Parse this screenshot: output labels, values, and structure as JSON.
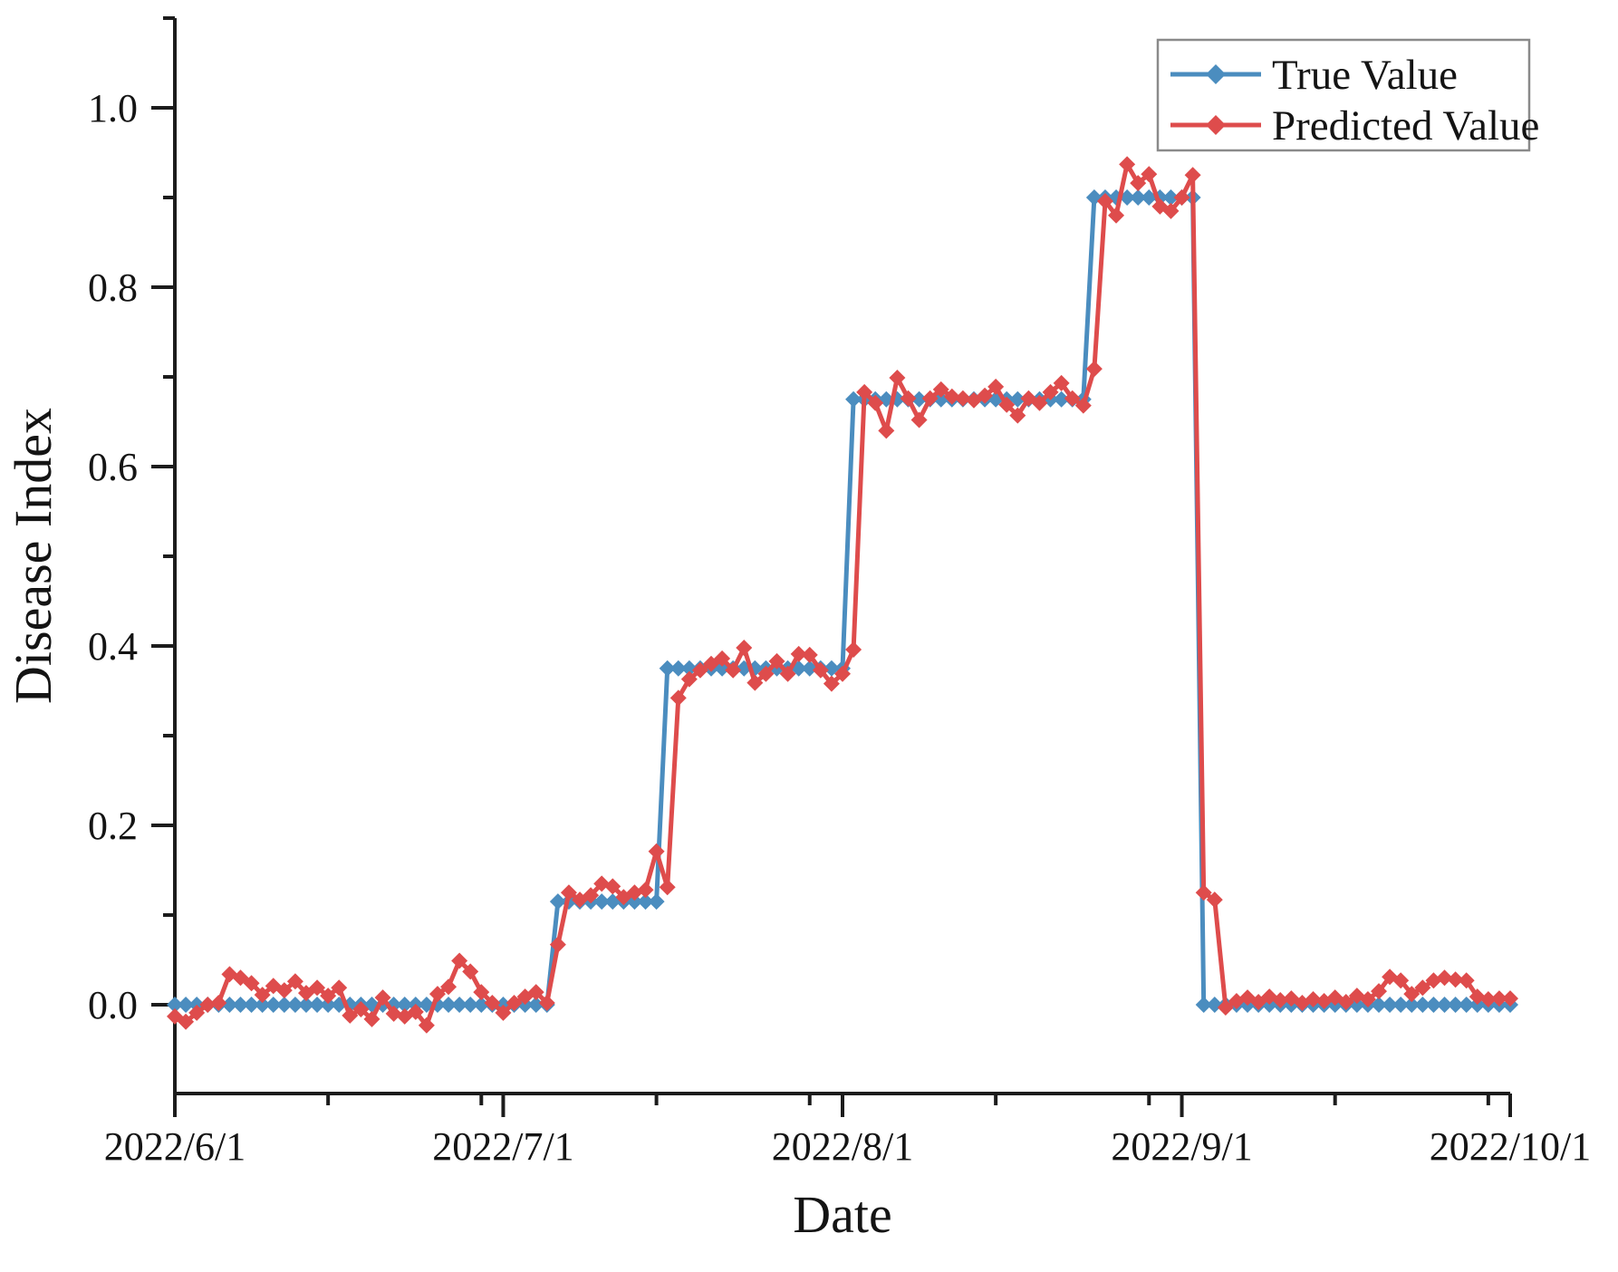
{
  "figure": {
    "background": "#ffffff",
    "axis_color": "#1c1c1c",
    "text_color": "#141414",
    "legend_border_color": "#8a8a8a"
  },
  "legend": {
    "position": "top-right",
    "items": [
      {
        "label": "True Value",
        "color": "#4b8dbf"
      },
      {
        "label": "Predicted Value",
        "color": "#de4c4c"
      }
    ]
  },
  "chart_data": {
    "type": "line",
    "title": "",
    "xlabel": "Date",
    "ylabel": "Disease Index",
    "grid": false,
    "legend_position": "top-right inside",
    "ylim": [
      -0.1,
      1.1
    ],
    "x_axis": {
      "start_label": "2022/6/1",
      "end_label": "2022/10/1",
      "sampling": "daily",
      "range_days": [
        0,
        122
      ],
      "major_ticks": [
        {
          "day": 0,
          "label": "2022/6/1"
        },
        {
          "day": 30,
          "label": "2022/7/1"
        },
        {
          "day": 61,
          "label": "2022/8/1"
        },
        {
          "day": 92,
          "label": "2022/9/1"
        },
        {
          "day": 122,
          "label": "2022/10/1"
        }
      ],
      "minor_tick_days": [
        14,
        28,
        44,
        58,
        75,
        89,
        106,
        120
      ]
    },
    "y_axis": {
      "major_ticks": [
        {
          "value": 0.0,
          "label": "0.0"
        },
        {
          "value": 0.2,
          "label": "0.2"
        },
        {
          "value": 0.4,
          "label": "0.4"
        },
        {
          "value": 0.6,
          "label": "0.6"
        },
        {
          "value": 0.8,
          "label": "0.8"
        },
        {
          "value": 1.0,
          "label": "1.0"
        }
      ],
      "minor_tick_values": [
        0.1,
        0.3,
        0.5,
        0.7,
        0.9,
        1.1
      ]
    },
    "x": [
      0,
      1,
      2,
      3,
      4,
      5,
      6,
      7,
      8,
      9,
      10,
      11,
      12,
      13,
      14,
      15,
      16,
      17,
      18,
      19,
      20,
      21,
      22,
      23,
      24,
      25,
      26,
      27,
      28,
      29,
      30,
      31,
      32,
      33,
      34,
      35,
      36,
      37,
      38,
      39,
      40,
      41,
      42,
      43,
      44,
      45,
      46,
      47,
      48,
      49,
      50,
      51,
      52,
      53,
      54,
      55,
      56,
      57,
      58,
      59,
      60,
      61,
      62,
      63,
      64,
      65,
      66,
      67,
      68,
      69,
      70,
      71,
      72,
      73,
      74,
      75,
      76,
      77,
      78,
      79,
      80,
      81,
      82,
      83,
      84,
      85,
      86,
      87,
      88,
      89,
      90,
      91,
      92,
      93,
      94,
      95,
      96,
      97,
      98,
      99,
      100,
      101,
      102,
      103,
      104,
      105,
      106,
      107,
      108,
      109,
      110,
      111,
      112,
      113,
      114,
      115,
      116,
      117,
      118,
      119,
      120,
      121,
      122
    ],
    "series": [
      {
        "name": "True Value",
        "color": "#4b8dbf",
        "marker": "diamond",
        "values": [
          0,
          0,
          0,
          0,
          0,
          0,
          0,
          0,
          0,
          0,
          0,
          0,
          0,
          0,
          0,
          0,
          0,
          0,
          0,
          0,
          0,
          0,
          0,
          0,
          0,
          0,
          0,
          0,
          0,
          0,
          0,
          0,
          0,
          0,
          0,
          0.115,
          0.115,
          0.115,
          0.115,
          0.115,
          0.115,
          0.115,
          0.115,
          0.115,
          0.115,
          0.375,
          0.375,
          0.375,
          0.375,
          0.375,
          0.375,
          0.375,
          0.375,
          0.375,
          0.375,
          0.375,
          0.375,
          0.375,
          0.375,
          0.375,
          0.375,
          0.375,
          0.675,
          0.675,
          0.675,
          0.675,
          0.675,
          0.675,
          0.675,
          0.675,
          0.675,
          0.675,
          0.675,
          0.675,
          0.675,
          0.675,
          0.675,
          0.675,
          0.675,
          0.675,
          0.675,
          0.675,
          0.675,
          0.675,
          0.9,
          0.9,
          0.9,
          0.9,
          0.9,
          0.9,
          0.9,
          0.9,
          0.9,
          0.9,
          0,
          0,
          0,
          0,
          0,
          0,
          0,
          0,
          0,
          0,
          0,
          0,
          0,
          0,
          0,
          0,
          0,
          0,
          0,
          0,
          0,
          0,
          0,
          0,
          0,
          0,
          0,
          0,
          0
        ]
      },
      {
        "name": "Predicted Value",
        "color": "#de4c4c",
        "marker": "diamond",
        "values": [
          -0.013,
          -0.019,
          -0.009,
          0.0,
          0.002,
          0.034,
          0.03,
          0.024,
          0.011,
          0.021,
          0.016,
          0.026,
          0.013,
          0.019,
          0.01,
          0.019,
          -0.012,
          -0.005,
          -0.016,
          0.008,
          -0.01,
          -0.013,
          -0.008,
          -0.023,
          0.012,
          0.02,
          0.049,
          0.037,
          0.014,
          0.002,
          -0.009,
          0.002,
          0.009,
          0.014,
          0.002,
          0.067,
          0.125,
          0.117,
          0.122,
          0.135,
          0.132,
          0.12,
          0.125,
          0.128,
          0.171,
          0.131,
          0.342,
          0.363,
          0.373,
          0.38,
          0.386,
          0.373,
          0.398,
          0.359,
          0.369,
          0.383,
          0.369,
          0.391,
          0.39,
          0.373,
          0.358,
          0.369,
          0.396,
          0.683,
          0.671,
          0.64,
          0.699,
          0.676,
          0.652,
          0.676,
          0.686,
          0.678,
          0.676,
          0.674,
          0.679,
          0.689,
          0.669,
          0.657,
          0.676,
          0.671,
          0.683,
          0.693,
          0.676,
          0.668,
          0.709,
          0.896,
          0.88,
          0.937,
          0.916,
          0.926,
          0.89,
          0.885,
          0.9,
          0.925,
          0.125,
          0.117,
          -0.003,
          0.004,
          0.008,
          0.003,
          0.009,
          0.005,
          0.007,
          0.002,
          0.006,
          0.004,
          0.008,
          0.003,
          0.01,
          0.006,
          0.015,
          0.031,
          0.027,
          0.012,
          0.019,
          0.027,
          0.03,
          0.028,
          0.027,
          0.009,
          0.006,
          0.007,
          0.007
        ]
      }
    ]
  }
}
